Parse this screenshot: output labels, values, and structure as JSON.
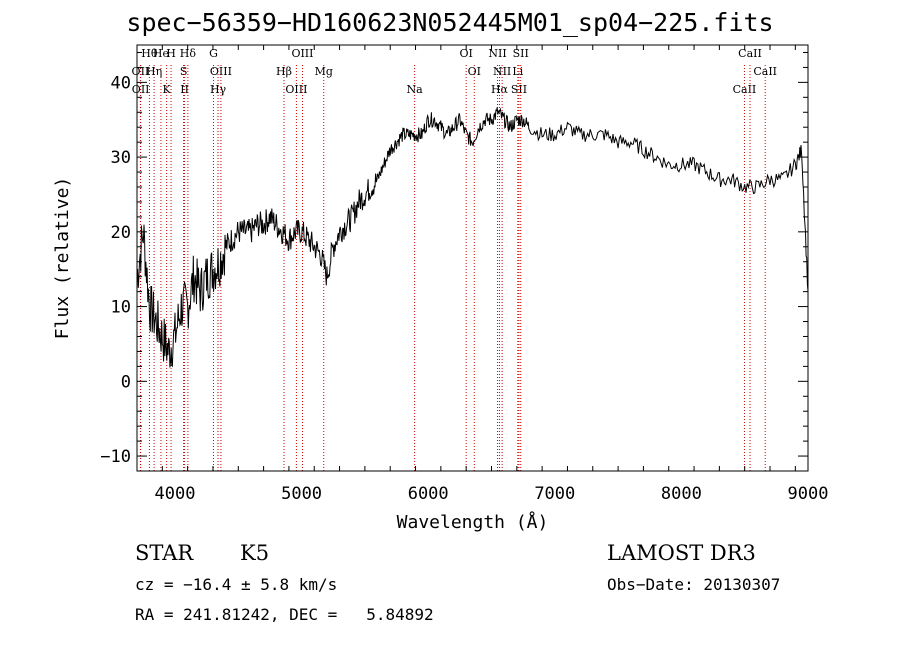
{
  "chart_data": {
    "type": "line",
    "title": "spec−56359−HD160623N052445M01_sp04−225.fits",
    "xlabel": "Wavelength (Å)",
    "ylabel": "Flux (relative)",
    "xlim": [
      3700,
      9000
    ],
    "ylim": [
      -12,
      45
    ],
    "xticks": [
      4000,
      5000,
      6000,
      7000,
      8000,
      9000
    ],
    "yticks": [
      -10,
      0,
      10,
      20,
      30,
      40
    ],
    "spectrum": {
      "x": [
        3700,
        3750,
        3800,
        3850,
        3900,
        3950,
        4000,
        4050,
        4100,
        4150,
        4200,
        4250,
        4300,
        4350,
        4400,
        4450,
        4500,
        4550,
        4600,
        4650,
        4700,
        4750,
        4800,
        4850,
        4900,
        4950,
        5000,
        5050,
        5100,
        5150,
        5200,
        5250,
        5300,
        5350,
        5400,
        5450,
        5500,
        5550,
        5600,
        5650,
        5700,
        5750,
        5800,
        5850,
        5900,
        5950,
        6000,
        6050,
        6100,
        6150,
        6200,
        6250,
        6300,
        6350,
        6400,
        6450,
        6500,
        6550,
        6600,
        6650,
        6700,
        6750,
        6800,
        6900,
        7000,
        7100,
        7200,
        7300,
        7400,
        7500,
        7600,
        7700,
        7800,
        7900,
        8000,
        8100,
        8200,
        8300,
        8400,
        8500,
        8600,
        8700,
        8800,
        8900,
        8950,
        9000
      ],
      "y": [
        14,
        20,
        10,
        8,
        6,
        4,
        6,
        10,
        10,
        14,
        12,
        14,
        15,
        16,
        18,
        19,
        20,
        20,
        20,
        21,
        21,
        22,
        21,
        20,
        19,
        20,
        20,
        19,
        18,
        17,
        14,
        18,
        20,
        21,
        22,
        24,
        25,
        26,
        27,
        29,
        31,
        32,
        33,
        33,
        33,
        33,
        35,
        35,
        34,
        33,
        34,
        35,
        33,
        32,
        34,
        35,
        35,
        36,
        35,
        34,
        35,
        35,
        34,
        33,
        33,
        34,
        33,
        33,
        33,
        32,
        32,
        31,
        30,
        29,
        29,
        29,
        28,
        27,
        27,
        26,
        26,
        27,
        27,
        29,
        31,
        12
      ]
    },
    "spectral_lines": [
      {
        "label": "Hθ",
        "wl": 3798
      },
      {
        "label": "OII",
        "wl": 3727
      },
      {
        "label": "OII",
        "wl": 3729
      },
      {
        "label": "He",
        "wl": 3889
      },
      {
        "label": "Hη",
        "wl": 3835
      },
      {
        "label": "K",
        "wl": 3934
      },
      {
        "label": "H",
        "wl": 3969
      },
      {
        "label": "S",
        "wl": 4068
      },
      {
        "label": "II",
        "wl": 4076
      },
      {
        "label": "Hδ",
        "wl": 4102
      },
      {
        "label": "OIII",
        "wl": 4363
      },
      {
        "label": "Hγ",
        "wl": 4340
      },
      {
        "label": "G",
        "wl": 4304
      },
      {
        "label": "Hβ",
        "wl": 4861
      },
      {
        "label": "OIII",
        "wl": 4959
      },
      {
        "label": "OIII",
        "wl": 5007
      },
      {
        "label": "Mg",
        "wl": 5175
      },
      {
        "label": "Na",
        "wl": 5893
      },
      {
        "label": "OI",
        "wl": 6300
      },
      {
        "label": "OI",
        "wl": 6364
      },
      {
        "label": "Hα",
        "wl": 6563
      },
      {
        "label": "NII",
        "wl": 6548
      },
      {
        "label": "NII",
        "wl": 6584
      },
      {
        "label": "SII",
        "wl": 6717
      },
      {
        "label": "SII",
        "wl": 6731
      },
      {
        "label": "Li",
        "wl": 6708
      },
      {
        "label": "CaII",
        "wl": 8498
      },
      {
        "label": "CaII",
        "wl": 8542
      },
      {
        "label": "CaII",
        "wl": 8662
      }
    ]
  },
  "info": {
    "class": "STAR",
    "subclass": "K5",
    "survey": "LAMOST DR3",
    "cz": "cz = −16.4 ± 5.8 km/s",
    "obs_date": "Obs−Date: 20130307",
    "radec": "RA = 241.81242, DEC =   5.84892"
  },
  "colors": {
    "line": "#000000",
    "marker": "#cc0000"
  }
}
